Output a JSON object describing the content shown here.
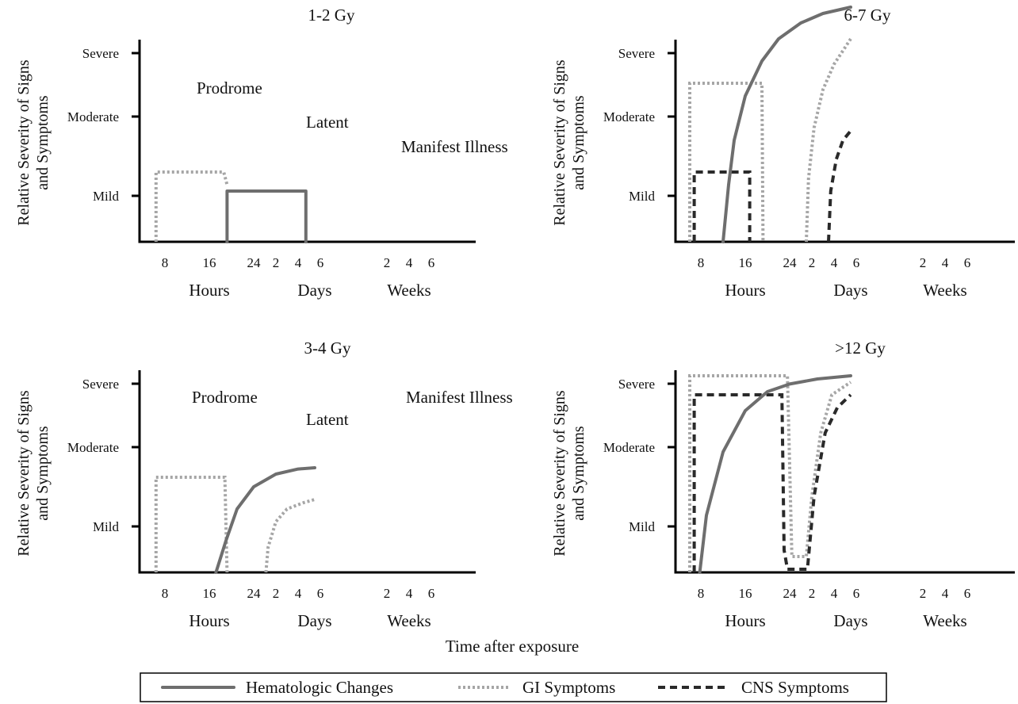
{
  "chart_data": {
    "type": "line",
    "xlabel": "Time after exposure",
    "ylabel": "Relative Severity of Signs and Symptoms",
    "ylabel_lines": [
      "Relative Severity of Signs",
      "and Symptoms"
    ],
    "y_levels": [
      "Mild",
      "Moderate",
      "Severe"
    ],
    "x_ticks": [
      "8",
      "16",
      "24",
      "2",
      "4",
      "6",
      "2",
      "4",
      "6"
    ],
    "x_groups": [
      "Hours",
      "Days",
      "Weeks"
    ],
    "legend": {
      "placement": "bottom",
      "entries": [
        "Hematologic Changes",
        "GI Symptoms",
        "CNS Symptoms"
      ]
    },
    "series_styles": {
      "hema": "#6e6e6e",
      "gi": "#a6a6a6",
      "cns": "#2a2a2a"
    },
    "panels": [
      {
        "title": "1-2 Gy",
        "labels": [
          "Prodrome",
          "Latent",
          "Manifest Illness"
        ],
        "series": {
          "gi": [
            [
              1.2,
              0
            ],
            [
              1.2,
              1.1
            ],
            [
              7.3,
              1.1
            ],
            [
              7.6,
              0.9
            ]
          ],
          "hema": [
            [
              7.6,
              0
            ],
            [
              7.6,
              0.8
            ],
            [
              14.7,
              0.8
            ],
            [
              14.7,
              0
            ]
          ]
        }
      },
      {
        "title": "6-7 Gy",
        "labels": [],
        "series": {
          "gi": [
            [
              1.0,
              0
            ],
            [
              1.0,
              2.5
            ],
            [
              7.5,
              2.5
            ],
            [
              7.6,
              0
            ]
          ],
          "cns": [
            [
              1.4,
              0
            ],
            [
              1.4,
              1.1
            ],
            [
              6.4,
              1.1
            ],
            [
              6.4,
              0
            ]
          ],
          "hema": [
            [
              4.0,
              0
            ],
            [
              4.5,
              0.9
            ],
            [
              5.0,
              1.6
            ],
            [
              6.0,
              2.3
            ],
            [
              7.5,
              2.85
            ],
            [
              9.0,
              3.2
            ],
            [
              11.0,
              3.45
            ],
            [
              13.0,
              3.6
            ],
            [
              15.5,
              3.7
            ]
          ],
          "gi_late": [
            [
              11.5,
              0
            ],
            [
              11.7,
              1.0
            ],
            [
              12.2,
              1.8
            ],
            [
              13.0,
              2.4
            ],
            [
              14.0,
              2.8
            ],
            [
              15.5,
              3.2
            ]
          ],
          "cns_late": [
            [
              13.5,
              0
            ],
            [
              13.7,
              0.8
            ],
            [
              14.2,
              1.3
            ],
            [
              14.8,
              1.6
            ],
            [
              15.5,
              1.75
            ]
          ]
        }
      },
      {
        "title": "3-4 Gy",
        "labels": [
          "Prodrome",
          "Latent",
          "Manifest Illness"
        ],
        "series": {
          "gi": [
            [
              1.2,
              0
            ],
            [
              1.2,
              1.5
            ],
            [
              7.4,
              1.5
            ],
            [
              7.6,
              0
            ]
          ],
          "hema": [
            [
              6.6,
              0
            ],
            [
              7.5,
              0.5
            ],
            [
              8.5,
              1.0
            ],
            [
              10.0,
              1.35
            ],
            [
              12.0,
              1.55
            ],
            [
              14.0,
              1.63
            ],
            [
              15.5,
              1.65
            ]
          ],
          "gi_late": [
            [
              11.1,
              0
            ],
            [
              11.3,
              0.4
            ],
            [
              12.0,
              0.8
            ],
            [
              13.0,
              1.0
            ],
            [
              14.5,
              1.1
            ],
            [
              15.5,
              1.15
            ]
          ]
        }
      },
      {
        "title": ">12 Gy",
        "labels": [],
        "series": {
          "gi": [
            [
              1.0,
              0
            ],
            [
              1.0,
              3.1
            ],
            [
              9.8,
              3.1
            ],
            [
              10.2,
              0.25
            ],
            [
              11.5,
              0.25
            ],
            [
              12.0,
              1.2
            ],
            [
              12.8,
              2.2
            ],
            [
              13.8,
              2.8
            ],
            [
              15.5,
              3.0
            ]
          ],
          "cns": [
            [
              1.4,
              0
            ],
            [
              1.4,
              2.8
            ],
            [
              9.3,
              2.8
            ],
            [
              9.5,
              0.35
            ],
            [
              9.8,
              0.05
            ],
            [
              11.6,
              0.05
            ],
            [
              12.2,
              1.2
            ],
            [
              13.2,
              2.2
            ],
            [
              14.3,
              2.6
            ],
            [
              15.5,
              2.8
            ]
          ],
          "hema": [
            [
              1.9,
              0
            ],
            [
              2.5,
              0.9
            ],
            [
              4.0,
              1.9
            ],
            [
              6.0,
              2.55
            ],
            [
              8.0,
              2.85
            ],
            [
              10.0,
              2.97
            ],
            [
              12.5,
              3.05
            ],
            [
              15.5,
              3.1
            ]
          ]
        }
      }
    ]
  }
}
